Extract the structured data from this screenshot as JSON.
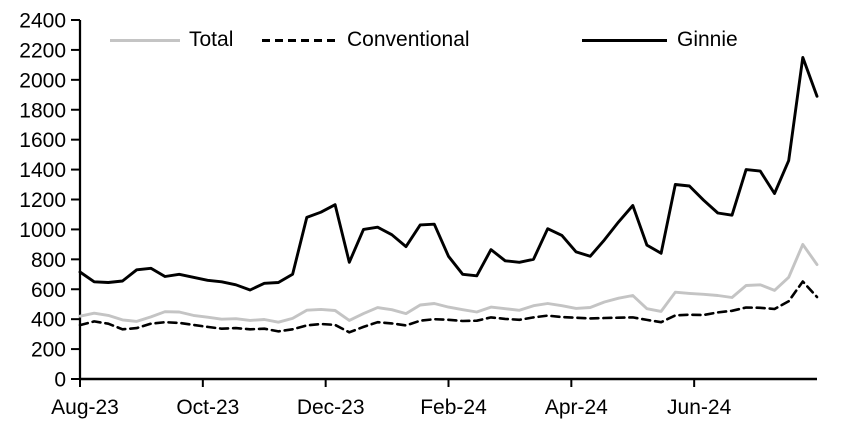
{
  "chart_data": {
    "type": "line",
    "title": "",
    "frequency": "weekly",
    "x_axis": {
      "tick_labels": [
        "Aug-23",
        "Oct-23",
        "Dec-23",
        "Feb-24",
        "Apr-24",
        "Jun-24"
      ],
      "tick_month_offsets": [
        0,
        2,
        4,
        6,
        8,
        10
      ],
      "months_span": 12,
      "range_start": "Aug-23",
      "range_end": "Aug-24"
    },
    "y_axis": {
      "min": 0,
      "max": 2400,
      "step": 200,
      "tick_labels": [
        "0",
        "200",
        "400",
        "600",
        "800",
        "1000",
        "1200",
        "1400",
        "1600",
        "1800",
        "2000",
        "2200",
        "2400"
      ]
    },
    "legend": {
      "position": "top",
      "entries": [
        "Total",
        "Conventional",
        "Ginnie"
      ]
    },
    "series": [
      {
        "name": "Total",
        "color": "#c4c4c4",
        "line_style": "solid",
        "values": [
          420,
          440,
          425,
          395,
          385,
          415,
          450,
          448,
          425,
          413,
          400,
          403,
          392,
          398,
          380,
          405,
          460,
          465,
          458,
          392,
          437,
          477,
          463,
          437,
          495,
          505,
          481,
          463,
          448,
          481,
          470,
          459,
          490,
          505,
          490,
          472,
          478,
          515,
          540,
          558,
          470,
          452,
          580,
          572,
          566,
          558,
          545,
          625,
          630,
          592,
          680,
          900,
          765
        ]
      },
      {
        "name": "Conventional",
        "color": "#000000",
        "line_style": "dashed",
        "values": [
          360,
          385,
          370,
          332,
          340,
          370,
          380,
          375,
          362,
          348,
          336,
          340,
          332,
          336,
          318,
          332,
          358,
          368,
          362,
          312,
          348,
          380,
          372,
          358,
          390,
          400,
          396,
          388,
          390,
          412,
          402,
          396,
          412,
          424,
          414,
          410,
          405,
          408,
          410,
          412,
          395,
          380,
          425,
          430,
          428,
          445,
          456,
          478,
          476,
          468,
          520,
          652,
          548
        ]
      },
      {
        "name": "Ginnie",
        "color": "#000000",
        "line_style": "solid",
        "values": [
          715,
          650,
          645,
          655,
          730,
          740,
          685,
          700,
          680,
          660,
          650,
          630,
          595,
          640,
          645,
          700,
          1080,
          1115,
          1165,
          780,
          1000,
          1015,
          965,
          885,
          1030,
          1035,
          820,
          700,
          690,
          865,
          790,
          780,
          800,
          1005,
          960,
          850,
          820,
          930,
          1050,
          1160,
          895,
          840,
          1300,
          1290,
          1195,
          1110,
          1095,
          1400,
          1390,
          1240,
          1460,
          2150,
          1890
        ]
      }
    ]
  }
}
